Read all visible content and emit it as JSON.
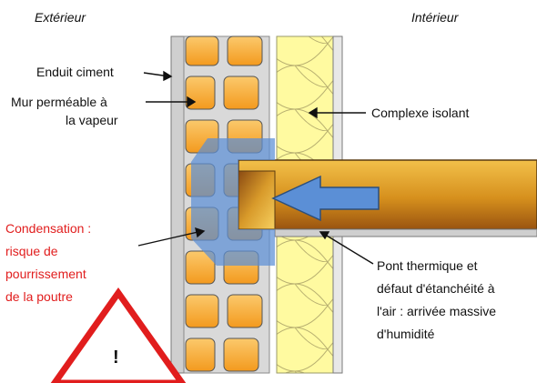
{
  "headers": {
    "exterior": "Extérieur",
    "interior": "Intérieur"
  },
  "labels": {
    "enduit": "Enduit ciment",
    "mur_line1": "Mur perméable à",
    "mur_line2": "la vapeur",
    "complexe": "Complexe isolant",
    "pont_line1": "Pont thermique et",
    "pont_line2": "défaut d'étanchéité à",
    "pont_line3": "l'air : arrivée massive",
    "pont_line4": "d'humidité"
  },
  "warning": {
    "line1": "Condensation :",
    "line2": "risque de",
    "line3": "pourrissement",
    "line4": "de la poutre",
    "symbol": "!"
  },
  "colors": {
    "brick": "#f7a93a",
    "mortar": "#d9d9d9",
    "insulation": "#fffaa0",
    "beam": "#c7811a",
    "condensation": "#5b8fd6",
    "warning": "#e11d1d"
  }
}
